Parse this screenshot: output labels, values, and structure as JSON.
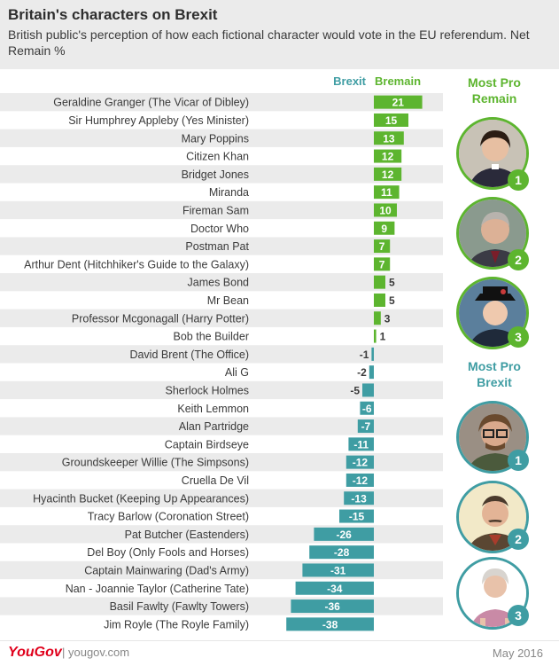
{
  "header": {
    "title": "Britain's characters on Brexit",
    "subtitle": "British public's perception of how each fictional character would vote in the EU referendum. Net Remain %"
  },
  "legend": {
    "brexit_label": "Brexit",
    "bremain_label": "Bremain"
  },
  "side": {
    "pro_remain_heading_1": "Most Pro",
    "pro_remain_heading_2": "Remain",
    "pro_brexit_heading_1": "Most Pro",
    "pro_brexit_heading_2": "Brexit",
    "remain_ranks": [
      "1",
      "2",
      "3"
    ],
    "brexit_ranks": [
      "1",
      "2",
      "3"
    ]
  },
  "colors": {
    "remain": "#5db52f",
    "brexit": "#3f9da3",
    "row_shade": "#ebebeb"
  },
  "chart_data": {
    "type": "bar",
    "orientation": "horizontal",
    "categories": [
      "Geraldine Granger (The Vicar of Dibley)",
      "Sir Humphrey Appleby (Yes Minister)",
      "Mary Poppins",
      "Citizen Khan",
      "Bridget Jones",
      "Miranda",
      "Fireman Sam",
      "Doctor Who",
      "Postman Pat",
      "Arthur Dent (Hitchhiker's Guide to the Galaxy)",
      "James Bond",
      "Mr Bean",
      "Professor Mcgonagall (Harry Potter)",
      "Bob the Builder",
      "David Brent (The Office)",
      "Ali G",
      "Sherlock Holmes",
      "Keith Lemmon",
      "Alan Partridge",
      "Captain Birdseye",
      "Groundskeeper Willie (The Simpsons)",
      "Cruella De Vil",
      "Hyacinth Bucket (Keeping Up Appearances)",
      "Tracy Barlow (Coronation Street)",
      "Pat Butcher (Eastenders)",
      "Del Boy (Only Fools and Horses)",
      "Captain Mainwaring (Dad's Army)",
      "Nan - Joannie Taylor (Catherine Tate)",
      "Basil Fawlty (Fawlty Towers)",
      "Jim Royle (The Royle Family)"
    ],
    "values": [
      21,
      15,
      13,
      12,
      12,
      11,
      10,
      9,
      7,
      7,
      5,
      5,
      3,
      1,
      -1,
      -2,
      -5,
      -6,
      -7,
      -11,
      -12,
      -12,
      -13,
      -15,
      -26,
      -28,
      -31,
      -34,
      -36,
      -38
    ],
    "value_labels": [
      "21",
      "15",
      "13",
      "12",
      "12",
      "11",
      "10",
      "9",
      "7",
      "7",
      "5",
      "5",
      "3",
      "1",
      "-1",
      "-2",
      "-5",
      "-6",
      "-7",
      "-11",
      "-12",
      "-12",
      "-13",
      "-15",
      "-26",
      "-28",
      "-31",
      "-34",
      "-36",
      "-38"
    ],
    "xlim": [
      -38,
      21
    ],
    "grid": false,
    "legend": "top"
  },
  "footer": {
    "logo": "YouGov",
    "site": "| yougov.com",
    "date": "May 2016"
  }
}
